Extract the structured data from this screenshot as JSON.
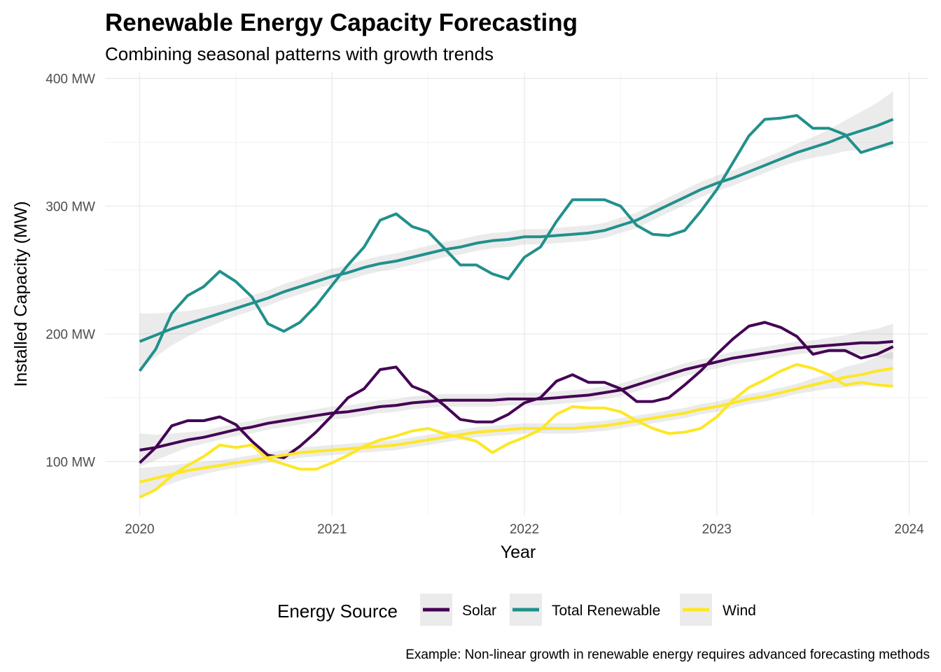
{
  "chart_data": {
    "type": "line",
    "title": "Renewable Energy Capacity Forecasting",
    "subtitle": "Combining seasonal patterns with growth trends",
    "xlabel": "Year",
    "ylabel": "Installed Capacity (MW)",
    "caption": "Example: Non-linear growth in renewable energy requires advanced forecasting methods",
    "xlim": [
      2019.82,
      2024.1
    ],
    "ylim": [
      58,
      405
    ],
    "x_ticks": [
      2020,
      2021,
      2022,
      2023,
      2024
    ],
    "x_tick_labels": [
      "2020",
      "2021",
      "2022",
      "2023",
      "2024"
    ],
    "y_ticks": [
      100,
      200,
      300,
      400
    ],
    "y_tick_labels": [
      "100 MW",
      "200 MW",
      "300 MW",
      "400 MW"
    ],
    "grid": true,
    "legend": {
      "title": "Energy Source",
      "position": "bottom",
      "items": [
        {
          "label": "Solar",
          "color": "#440154"
        },
        {
          "label": "Total Renewable",
          "color": "#21908C"
        },
        {
          "label": "Wind",
          "color": "#FDE725"
        }
      ]
    },
    "x_months": [
      "2020-01",
      "2020-02",
      "2020-03",
      "2020-04",
      "2020-05",
      "2020-06",
      "2020-07",
      "2020-08",
      "2020-09",
      "2020-10",
      "2020-11",
      "2020-12",
      "2021-01",
      "2021-02",
      "2021-03",
      "2021-04",
      "2021-05",
      "2021-06",
      "2021-07",
      "2021-08",
      "2021-09",
      "2021-10",
      "2021-11",
      "2021-12",
      "2022-01",
      "2022-02",
      "2022-03",
      "2022-04",
      "2022-05",
      "2022-06",
      "2022-07",
      "2022-08",
      "2022-09",
      "2022-10",
      "2022-11",
      "2022-12",
      "2023-01",
      "2023-02",
      "2023-03",
      "2023-04",
      "2023-05",
      "2023-06",
      "2023-07",
      "2023-08",
      "2023-09",
      "2023-10",
      "2023-11",
      "2023-12"
    ],
    "series": [
      {
        "name": "Solar",
        "color": "#440154",
        "values": [
          99,
          111,
          128,
          132,
          132,
          135,
          129,
          116,
          105,
          103,
          112,
          123,
          136,
          150,
          157,
          172,
          174,
          159,
          154,
          144,
          133,
          131,
          131,
          137,
          146,
          150,
          163,
          168,
          162,
          162,
          157,
          147,
          147,
          150,
          160,
          171,
          184,
          196,
          206,
          209,
          205,
          198,
          184,
          187,
          187,
          181,
          184,
          190
        ],
        "trend": [
          109,
          111,
          114,
          117,
          119,
          122,
          125,
          127,
          130,
          132,
          134,
          136,
          138,
          139,
          141,
          143,
          144,
          146,
          147,
          148,
          148,
          148,
          148,
          149,
          149,
          149,
          150,
          151,
          152,
          154,
          156,
          160,
          164,
          168,
          172,
          175,
          178,
          181,
          183,
          185,
          187,
          189,
          190,
          191,
          192,
          193,
          193,
          194
        ],
        "band": [
          13,
          10,
          8,
          6,
          5,
          5,
          5,
          5,
          5,
          5,
          5,
          5,
          5,
          5,
          5,
          5,
          5,
          5,
          5,
          5,
          5,
          5,
          5,
          5,
          5,
          5,
          5,
          5,
          5,
          5,
          5,
          5,
          5,
          5,
          5,
          5,
          5,
          5,
          5,
          5,
          5,
          5,
          5,
          6,
          7,
          9,
          11,
          14
        ]
      },
      {
        "name": "Total Renewable",
        "color": "#21908C",
        "values": [
          171,
          188,
          216,
          230,
          237,
          249,
          241,
          229,
          208,
          202,
          209,
          222,
          238,
          254,
          268,
          289,
          294,
          284,
          280,
          267,
          254,
          254,
          247,
          243,
          260,
          268,
          288,
          305,
          305,
          305,
          300,
          285,
          278,
          277,
          281,
          296,
          313,
          334,
          355,
          368,
          369,
          371,
          361,
          361,
          356,
          342,
          346,
          350
        ],
        "trend": [
          194,
          199,
          204,
          208,
          212,
          216,
          220,
          224,
          228,
          233,
          237,
          241,
          245,
          248,
          252,
          255,
          257,
          260,
          263,
          266,
          268,
          271,
          273,
          274,
          276,
          276,
          277,
          278,
          279,
          281,
          285,
          289,
          295,
          301,
          307,
          313,
          318,
          322,
          327,
          332,
          337,
          342,
          346,
          350,
          355,
          359,
          363,
          368
        ],
        "band": [
          22,
          17,
          13,
          10,
          8,
          7,
          6,
          6,
          6,
          6,
          6,
          6,
          6,
          6,
          6,
          6,
          6,
          6,
          6,
          6,
          6,
          6,
          6,
          6,
          6,
          6,
          6,
          6,
          6,
          6,
          6,
          6,
          6,
          6,
          6,
          6,
          6,
          6,
          6,
          6,
          6,
          7,
          8,
          10,
          12,
          15,
          18,
          22
        ]
      },
      {
        "name": "Wind",
        "color": "#FDE725",
        "values": [
          72,
          78,
          89,
          97,
          104,
          113,
          111,
          113,
          102,
          98,
          94,
          94,
          99,
          105,
          112,
          117,
          120,
          124,
          126,
          122,
          119,
          116,
          107,
          114,
          119,
          125,
          137,
          143,
          142,
          142,
          139,
          132,
          126,
          122,
          123,
          126,
          135,
          148,
          158,
          164,
          171,
          176,
          173,
          168,
          160,
          162,
          160,
          159
        ],
        "trend": [
          84,
          87,
          90,
          93,
          95,
          97,
          99,
          101,
          103,
          105,
          107,
          108,
          109,
          110,
          111,
          112,
          113,
          115,
          117,
          119,
          121,
          123,
          124,
          125,
          126,
          126,
          126,
          126,
          127,
          128,
          130,
          132,
          134,
          136,
          138,
          141,
          143,
          146,
          149,
          151,
          154,
          157,
          160,
          163,
          166,
          168,
          171,
          173
        ],
        "band": [
          11,
          9,
          7,
          6,
          5,
          4,
          4,
          4,
          4,
          4,
          4,
          4,
          4,
          4,
          4,
          4,
          4,
          4,
          4,
          4,
          4,
          4,
          4,
          4,
          4,
          4,
          4,
          4,
          4,
          4,
          4,
          4,
          4,
          4,
          4,
          4,
          4,
          4,
          4,
          4,
          4,
          4,
          5,
          6,
          8,
          9,
          11,
          13
        ]
      }
    ]
  }
}
